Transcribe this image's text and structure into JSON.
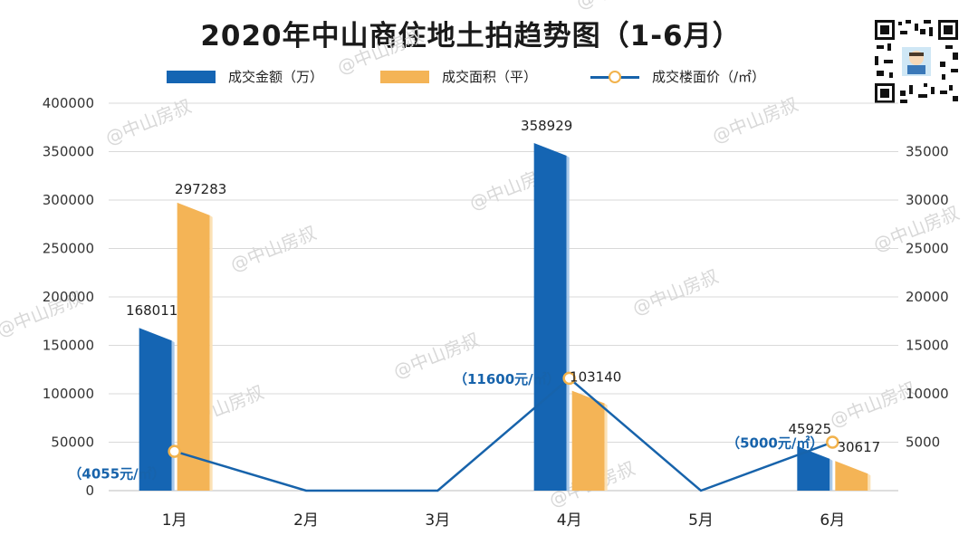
{
  "title": "2020年中山商住地土拍趋势图（1-6月）",
  "watermark_text": "@中山房叔",
  "legend": [
    {
      "label": "成交金额（万）",
      "color": "#1565b3",
      "kind": "bar"
    },
    {
      "label": "成交面积（平）",
      "color": "#f4b456",
      "kind": "bar"
    },
    {
      "label": "成交楼面价（/㎡）",
      "color": "#1763ab",
      "kind": "line"
    }
  ],
  "chart_data": {
    "type": "bar",
    "categories": [
      "1月",
      "2月",
      "3月",
      "4月",
      "5月",
      "6月"
    ],
    "series": [
      {
        "name": "成交金额（万）",
        "axis": "left",
        "values": [
          168011,
          0,
          0,
          358929,
          0,
          45925
        ],
        "color": "#1565b3"
      },
      {
        "name": "成交面积（平）",
        "axis": "left",
        "values": [
          297283,
          0,
          0,
          103140,
          0,
          30617
        ],
        "color": "#f4b456"
      },
      {
        "name": "成交楼面价（/㎡）",
        "axis": "right",
        "type": "line",
        "values": [
          4055,
          0,
          0,
          11600,
          0,
          5000
        ],
        "color": "#1763ab"
      }
    ],
    "bar_labels": {
      "amount": [
        "168011",
        "",
        "",
        "358929",
        "",
        "45925"
      ],
      "area": [
        "297283",
        "",
        "",
        "103140",
        "",
        "30617"
      ]
    },
    "price_labels": [
      "（4055元/㎡）",
      "",
      "",
      "（11600元/㎡）",
      "",
      "（5000元/㎡）"
    ],
    "ylim_left": [
      0,
      400000
    ],
    "ylim_right": [
      0,
      40000
    ],
    "yticks_left": [
      "0",
      "50000",
      "100000",
      "150000",
      "200000",
      "250000",
      "300000",
      "350000",
      "400000"
    ],
    "yticks_right": [
      "5000",
      "10000",
      "15000",
      "20000",
      "25000",
      "30000",
      "35000"
    ],
    "grid": true
  }
}
